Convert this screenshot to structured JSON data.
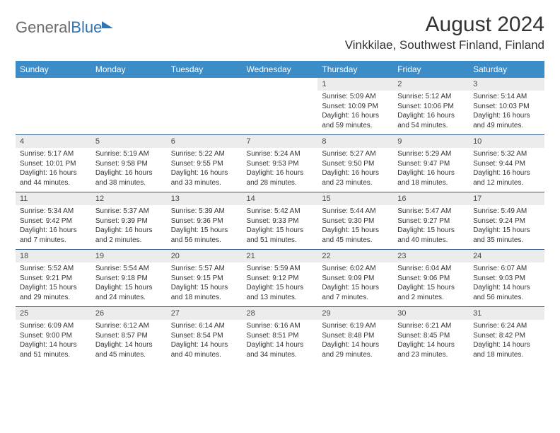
{
  "brand": {
    "word1": "General",
    "word2": "Blue"
  },
  "title": "August 2024",
  "location": "Vinkkilae, Southwest Finland, Finland",
  "colors": {
    "header_bg": "#3c8cc8",
    "header_text": "#ffffff",
    "date_row_bg": "#ececec",
    "row_border": "#2e5a8a",
    "brand_gray": "#6b6b6b",
    "brand_blue": "#2e75b6",
    "body_text": "#333333"
  },
  "typography": {
    "title_fontsize": 30,
    "location_fontsize": 17,
    "dayheader_fontsize": 12,
    "daynum_fontsize": 11,
    "cell_fontsize": 10
  },
  "day_names": [
    "Sunday",
    "Monday",
    "Tuesday",
    "Wednesday",
    "Thursday",
    "Friday",
    "Saturday"
  ],
  "weeks": [
    {
      "dates": [
        "",
        "",
        "",
        "",
        "1",
        "2",
        "3"
      ],
      "cells": [
        null,
        null,
        null,
        null,
        {
          "sunrise": "5:09 AM",
          "sunset": "10:09 PM",
          "daylight": "16 hours and 59 minutes."
        },
        {
          "sunrise": "5:12 AM",
          "sunset": "10:06 PM",
          "daylight": "16 hours and 54 minutes."
        },
        {
          "sunrise": "5:14 AM",
          "sunset": "10:03 PM",
          "daylight": "16 hours and 49 minutes."
        }
      ]
    },
    {
      "dates": [
        "4",
        "5",
        "6",
        "7",
        "8",
        "9",
        "10"
      ],
      "cells": [
        {
          "sunrise": "5:17 AM",
          "sunset": "10:01 PM",
          "daylight": "16 hours and 44 minutes."
        },
        {
          "sunrise": "5:19 AM",
          "sunset": "9:58 PM",
          "daylight": "16 hours and 38 minutes."
        },
        {
          "sunrise": "5:22 AM",
          "sunset": "9:55 PM",
          "daylight": "16 hours and 33 minutes."
        },
        {
          "sunrise": "5:24 AM",
          "sunset": "9:53 PM",
          "daylight": "16 hours and 28 minutes."
        },
        {
          "sunrise": "5:27 AM",
          "sunset": "9:50 PM",
          "daylight": "16 hours and 23 minutes."
        },
        {
          "sunrise": "5:29 AM",
          "sunset": "9:47 PM",
          "daylight": "16 hours and 18 minutes."
        },
        {
          "sunrise": "5:32 AM",
          "sunset": "9:44 PM",
          "daylight": "16 hours and 12 minutes."
        }
      ]
    },
    {
      "dates": [
        "11",
        "12",
        "13",
        "14",
        "15",
        "16",
        "17"
      ],
      "cells": [
        {
          "sunrise": "5:34 AM",
          "sunset": "9:42 PM",
          "daylight": "16 hours and 7 minutes."
        },
        {
          "sunrise": "5:37 AM",
          "sunset": "9:39 PM",
          "daylight": "16 hours and 2 minutes."
        },
        {
          "sunrise": "5:39 AM",
          "sunset": "9:36 PM",
          "daylight": "15 hours and 56 minutes."
        },
        {
          "sunrise": "5:42 AM",
          "sunset": "9:33 PM",
          "daylight": "15 hours and 51 minutes."
        },
        {
          "sunrise": "5:44 AM",
          "sunset": "9:30 PM",
          "daylight": "15 hours and 45 minutes."
        },
        {
          "sunrise": "5:47 AM",
          "sunset": "9:27 PM",
          "daylight": "15 hours and 40 minutes."
        },
        {
          "sunrise": "5:49 AM",
          "sunset": "9:24 PM",
          "daylight": "15 hours and 35 minutes."
        }
      ]
    },
    {
      "dates": [
        "18",
        "19",
        "20",
        "21",
        "22",
        "23",
        "24"
      ],
      "cells": [
        {
          "sunrise": "5:52 AM",
          "sunset": "9:21 PM",
          "daylight": "15 hours and 29 minutes."
        },
        {
          "sunrise": "5:54 AM",
          "sunset": "9:18 PM",
          "daylight": "15 hours and 24 minutes."
        },
        {
          "sunrise": "5:57 AM",
          "sunset": "9:15 PM",
          "daylight": "15 hours and 18 minutes."
        },
        {
          "sunrise": "5:59 AM",
          "sunset": "9:12 PM",
          "daylight": "15 hours and 13 minutes."
        },
        {
          "sunrise": "6:02 AM",
          "sunset": "9:09 PM",
          "daylight": "15 hours and 7 minutes."
        },
        {
          "sunrise": "6:04 AM",
          "sunset": "9:06 PM",
          "daylight": "15 hours and 2 minutes."
        },
        {
          "sunrise": "6:07 AM",
          "sunset": "9:03 PM",
          "daylight": "14 hours and 56 minutes."
        }
      ]
    },
    {
      "dates": [
        "25",
        "26",
        "27",
        "28",
        "29",
        "30",
        "31"
      ],
      "cells": [
        {
          "sunrise": "6:09 AM",
          "sunset": "9:00 PM",
          "daylight": "14 hours and 51 minutes."
        },
        {
          "sunrise": "6:12 AM",
          "sunset": "8:57 PM",
          "daylight": "14 hours and 45 minutes."
        },
        {
          "sunrise": "6:14 AM",
          "sunset": "8:54 PM",
          "daylight": "14 hours and 40 minutes."
        },
        {
          "sunrise": "6:16 AM",
          "sunset": "8:51 PM",
          "daylight": "14 hours and 34 minutes."
        },
        {
          "sunrise": "6:19 AM",
          "sunset": "8:48 PM",
          "daylight": "14 hours and 29 minutes."
        },
        {
          "sunrise": "6:21 AM",
          "sunset": "8:45 PM",
          "daylight": "14 hours and 23 minutes."
        },
        {
          "sunrise": "6:24 AM",
          "sunset": "8:42 PM",
          "daylight": "14 hours and 18 minutes."
        }
      ]
    }
  ],
  "labels": {
    "sunrise": "Sunrise:",
    "sunset": "Sunset:",
    "daylight": "Daylight:"
  }
}
